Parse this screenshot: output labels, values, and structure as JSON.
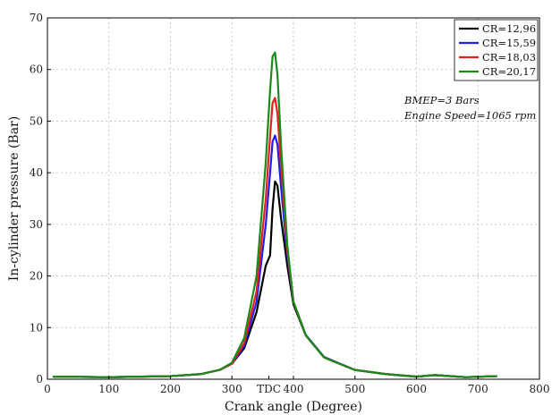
{
  "chart_data": {
    "type": "line",
    "xlabel": "Crank angle (Degree)",
    "ylabel": "In-cylinder pressure (Bar)",
    "xlim": [
      0,
      800
    ],
    "ylim": [
      0,
      70
    ],
    "grid": true,
    "legend_position": "top-right",
    "x_ticks": [
      {
        "value": 0,
        "label": "0"
      },
      {
        "value": 100,
        "label": "100"
      },
      {
        "value": 200,
        "label": "200"
      },
      {
        "value": 300,
        "label": "300"
      },
      {
        "value": 360,
        "label": "TDC"
      },
      {
        "value": 400,
        "label": "400"
      },
      {
        "value": 500,
        "label": "500"
      },
      {
        "value": 600,
        "label": "600"
      },
      {
        "value": 700,
        "label": "700"
      },
      {
        "value": 800,
        "label": "800"
      }
    ],
    "y_ticks": [
      0,
      10,
      20,
      30,
      40,
      50,
      60,
      70
    ],
    "annotations": [
      "BMEP=3 Bars",
      "Engine Speed=1065 rpm"
    ],
    "series": [
      {
        "name": "CR=12,96",
        "color": "#000000",
        "x": [
          10,
          100,
          200,
          250,
          280,
          300,
          320,
          340,
          355,
          362,
          366,
          370,
          374,
          380,
          390,
          400,
          420,
          450,
          500,
          550,
          600,
          630,
          680,
          730
        ],
        "y": [
          0.5,
          0.4,
          0.6,
          1.0,
          1.8,
          3.0,
          6.0,
          13.0,
          22.0,
          24.0,
          33.0,
          38.3,
          37.5,
          31.0,
          22.0,
          14.5,
          8.5,
          4.2,
          1.8,
          1.0,
          0.5,
          0.8,
          0.4,
          0.6
        ]
      },
      {
        "name": "CR=15,59",
        "color": "#1f1fe6",
        "x": [
          10,
          100,
          200,
          250,
          280,
          300,
          320,
          340,
          355,
          362,
          366,
          370,
          374,
          380,
          390,
          400,
          420,
          450,
          500,
          550,
          600,
          630,
          680,
          730
        ],
        "y": [
          0.5,
          0.4,
          0.6,
          1.0,
          1.8,
          3.0,
          6.5,
          15.0,
          30.0,
          40.0,
          46.0,
          47.2,
          45.5,
          37.0,
          24.0,
          15.0,
          8.6,
          4.3,
          1.8,
          1.0,
          0.5,
          0.8,
          0.4,
          0.6
        ]
      },
      {
        "name": "CR=18,03",
        "color": "#e61f1f",
        "x": [
          10,
          100,
          200,
          250,
          280,
          300,
          320,
          340,
          355,
          362,
          366,
          370,
          374,
          380,
          390,
          400,
          420,
          450,
          500,
          550,
          600,
          630,
          680,
          730
        ],
        "y": [
          0.5,
          0.4,
          0.6,
          1.0,
          1.8,
          3.0,
          7.0,
          17.0,
          35.0,
          47.0,
          53.5,
          54.5,
          51.5,
          41.0,
          25.0,
          15.0,
          8.5,
          4.2,
          1.8,
          1.0,
          0.5,
          0.8,
          0.4,
          0.6
        ]
      },
      {
        "name": "CR=20,17",
        "color": "#1a8a1a",
        "x": [
          10,
          100,
          200,
          250,
          280,
          300,
          320,
          340,
          355,
          362,
          366,
          370,
          374,
          380,
          390,
          400,
          420,
          450,
          500,
          550,
          600,
          630,
          680,
          730
        ],
        "y": [
          0.5,
          0.4,
          0.6,
          1.0,
          1.8,
          3.2,
          8.0,
          20.0,
          42.0,
          56.0,
          62.5,
          63.3,
          59.0,
          45.0,
          26.0,
          15.0,
          8.5,
          4.2,
          1.8,
          1.0,
          0.5,
          0.8,
          0.4,
          0.6
        ]
      }
    ]
  }
}
